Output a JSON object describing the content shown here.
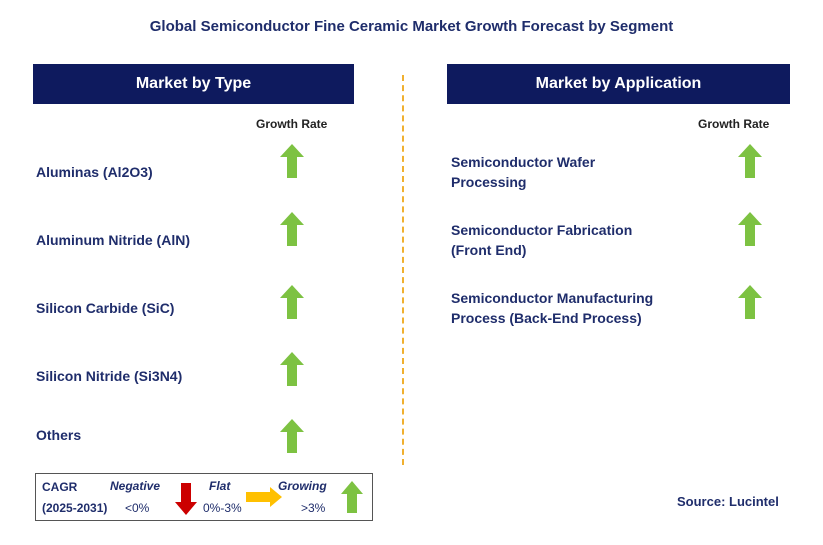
{
  "title": "Global Semiconductor Fine Ceramic Market Growth Forecast by Segment",
  "left_panel": {
    "header": "Market by Type",
    "growth_rate_label": "Growth Rate",
    "items": [
      {
        "label": "Aluminas (Al2O3)",
        "trend": "growing"
      },
      {
        "label": "Aluminum Nitride (AlN)",
        "trend": "growing"
      },
      {
        "label": "Silicon Carbide (SiC)",
        "trend": "growing"
      },
      {
        "label": "Silicon Nitride (Si3N4)",
        "trend": "growing"
      },
      {
        "label": "Others",
        "trend": "growing"
      }
    ]
  },
  "right_panel": {
    "header": "Market by Application",
    "growth_rate_label": "Growth Rate",
    "items": [
      {
        "line1": "Semiconductor Wafer",
        "line2": "Processing",
        "trend": "growing"
      },
      {
        "line1": "Semiconductor Fabrication",
        "line2": "(Front End)",
        "trend": "growing"
      },
      {
        "line1": "Semiconductor Manufacturing",
        "line2": "Process (Back-End Process)",
        "trend": "growing"
      }
    ]
  },
  "legend": {
    "cagr": "CAGR",
    "period": "(2025-2031)",
    "negative_label": "Negative",
    "negative_range": "<0%",
    "flat_label": "Flat",
    "flat_range": "0%-3%",
    "growing_label": "Growing",
    "growing_range": ">3%"
  },
  "source": "Source: Lucintel",
  "colors": {
    "header_bg": "#0e1a5e",
    "text": "#1f2d6b",
    "up_arrow": "#7dc242",
    "down_arrow": "#cc0000",
    "flat_arrow": "#ffc000",
    "divider": "#f0b030"
  }
}
